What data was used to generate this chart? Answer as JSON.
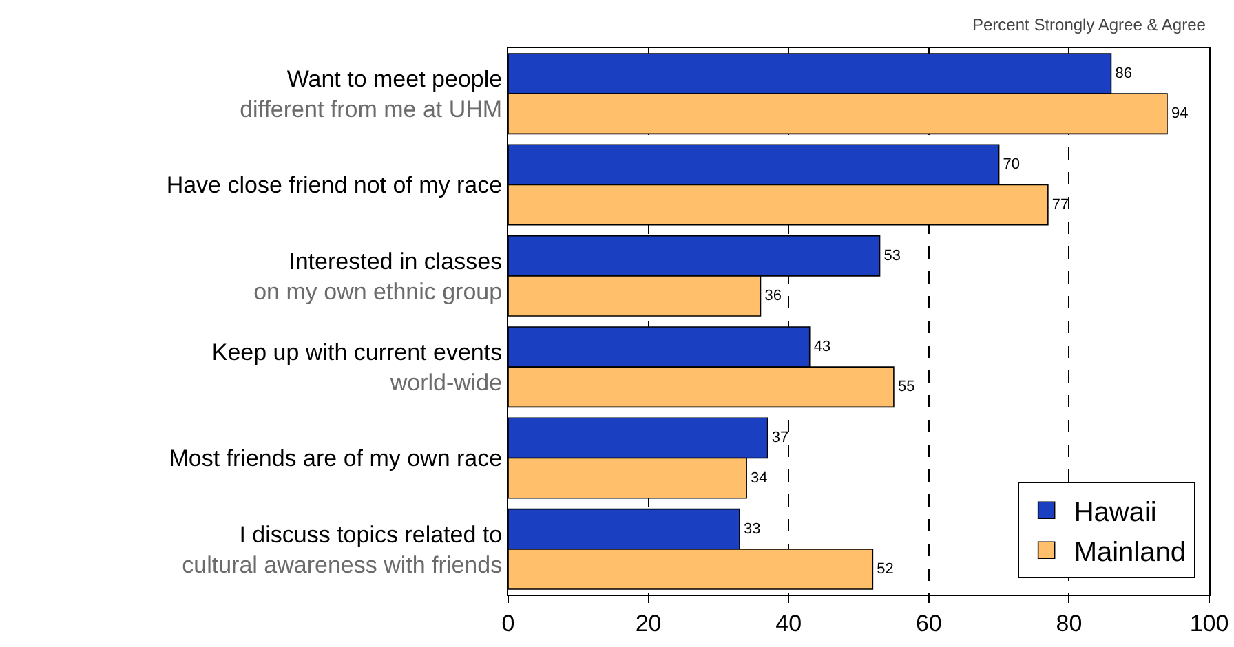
{
  "chart_data": {
    "type": "bar",
    "orientation": "horizontal",
    "categories": [
      "Want to meet people\ndifferent from me at UHM",
      "Have close friend not of my race",
      "Interested in classes\non my own ethnic group",
      "Keep up with current events\nworld-wide",
      "Most friends are of my own race",
      "I discuss topics related to\ncultural awareness with friends"
    ],
    "series": [
      {
        "name": "Hawaii",
        "color": "#1a3fc0",
        "values": [
          86,
          70,
          53,
          43,
          37,
          33
        ]
      },
      {
        "name": "Mainland",
        "color": "#ffbf6b",
        "values": [
          94,
          77,
          36,
          55,
          34,
          52
        ]
      }
    ],
    "xlim": [
      0,
      100
    ],
    "xticks": [
      0,
      20,
      40,
      60,
      80,
      100
    ],
    "grid": "x",
    "data_labels": true,
    "legend": "bottom right",
    "annotations": [
      "Percent Strongly Agree & Agree"
    ]
  }
}
